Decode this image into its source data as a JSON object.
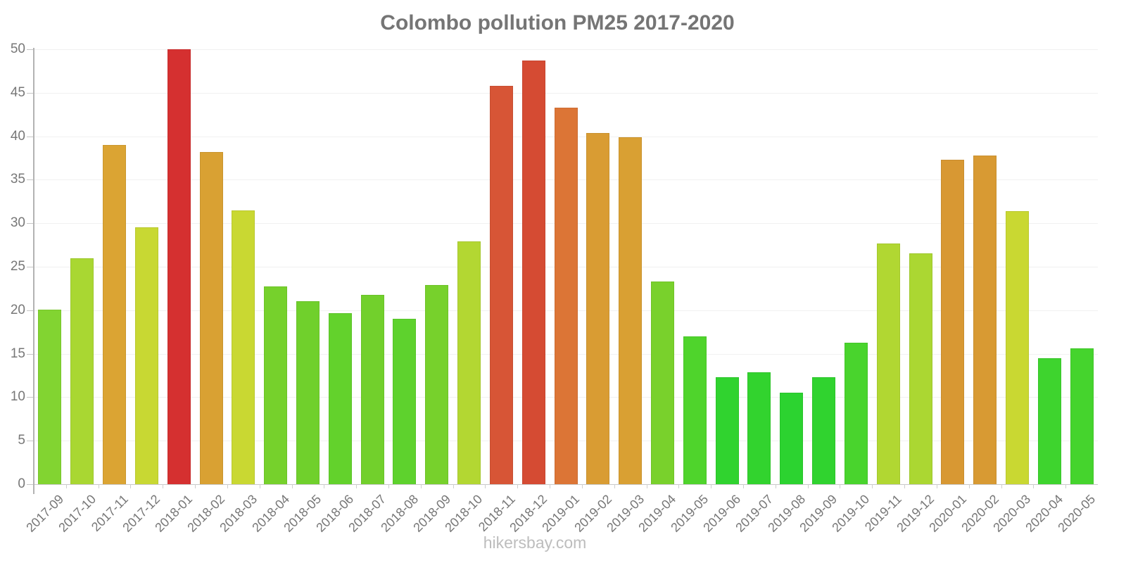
{
  "footer": {
    "watermark": "hikersbay.com"
  },
  "style": {
    "background": "#ffffff",
    "title_color": "#757575",
    "tick_label_color": "#777777",
    "axis_line_color": "#b3b3b3",
    "gridline_color": "#f1f1f1",
    "baseline_color": "#c9c9c9",
    "watermark_color": "#bdbdbd"
  },
  "chart_data": {
    "type": "bar",
    "title": "Colombo pollution PM25 2017-2020",
    "xlabel": "",
    "ylabel": "",
    "ylim": [
      0,
      50
    ],
    "yticks": [
      0,
      5,
      10,
      15,
      20,
      25,
      30,
      35,
      40,
      45,
      50
    ],
    "grid": true,
    "legend": false,
    "categories": [
      "2017-09",
      "2017-10",
      "2017-11",
      "2017-12",
      "2018-01",
      "2018-02",
      "2018-03",
      "2018-04",
      "2018-05",
      "2018-06",
      "2018-07",
      "2018-08",
      "2018-09",
      "2018-10",
      "2018-11",
      "2018-12",
      "2019-01",
      "2019-02",
      "2019-03",
      "2019-04",
      "2019-05",
      "2019-06",
      "2019-07",
      "2019-08",
      "2019-09",
      "2019-10",
      "2019-11",
      "2019-12",
      "2020-01",
      "2020-02",
      "2020-03",
      "2020-04",
      "2020-05"
    ],
    "values": [
      20.1,
      26.0,
      39.0,
      29.5,
      50.0,
      38.2,
      31.5,
      22.7,
      21.0,
      19.7,
      21.8,
      19.0,
      22.9,
      27.9,
      45.8,
      48.7,
      43.3,
      40.4,
      39.9,
      23.3,
      17.0,
      12.3,
      12.9,
      10.5,
      12.3,
      16.3,
      27.7,
      26.5,
      37.3,
      37.8,
      31.4,
      14.5,
      15.6
    ],
    "bar_colors": [
      "#82d431",
      "#a9d732",
      "#dba433",
      "#c8d833",
      "#d53030",
      "#d9a133",
      "#c9d832",
      "#76d12c",
      "#70d02c",
      "#63d22c",
      "#72d02c",
      "#5ed22d",
      "#77d12c",
      "#b3d732",
      "#d75536",
      "#d54b33",
      "#dc7536",
      "#d99c33",
      "#d9a033",
      "#79d12c",
      "#4fd42c",
      "#30d32f",
      "#32d32e",
      "#2cd330",
      "#30d32f",
      "#49d42d",
      "#b1d732",
      "#abd732",
      "#d89833",
      "#d89a33",
      "#c9d832",
      "#3ed42e",
      "#45d42d"
    ]
  }
}
